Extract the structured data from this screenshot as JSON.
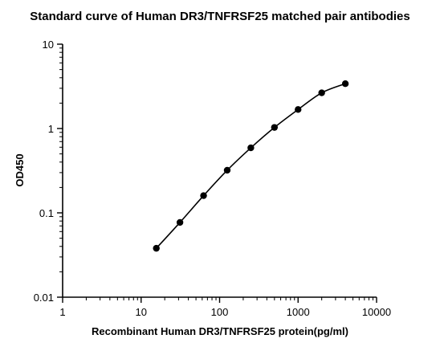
{
  "chart_data": {
    "type": "scatter",
    "title": "Standard curve of Human DR3/TNFRSF25 matched pair antibodies",
    "xlabel": "Recombinant Human DR3/TNFRSF25 protein(pg/ml)",
    "ylabel": "OD450",
    "x_scale": "log",
    "y_scale": "log",
    "xlim": [
      1,
      10000
    ],
    "ylim": [
      0.01,
      10
    ],
    "x_ticks": [
      "1",
      "10",
      "100",
      "1000",
      "10000"
    ],
    "y_ticks": [
      "0.01",
      "0.1",
      "1",
      "10"
    ],
    "grid": false,
    "fit_line": true,
    "series": [
      {
        "x": [
          15.625,
          31.25,
          62.5,
          125,
          250,
          500,
          1000,
          2000,
          4000
        ],
        "y": [
          0.038,
          0.077,
          0.16,
          0.32,
          0.59,
          1.03,
          1.68,
          2.65,
          3.4
        ]
      }
    ]
  }
}
